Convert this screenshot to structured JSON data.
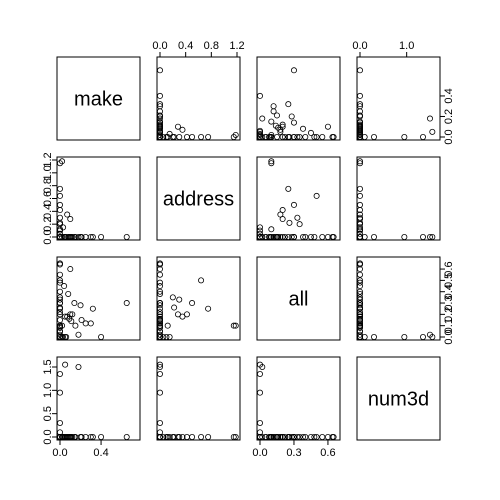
{
  "chart_data": {
    "type": "scatter",
    "title": "",
    "grid": false,
    "variables": [
      {
        "name": "make",
        "range": [
          0,
          0.75
        ],
        "ticks": [
          0.0,
          0.4
        ],
        "tick_labels": [
          "0.0",
          "0.4"
        ]
      },
      {
        "name": "address",
        "range": [
          0,
          1.2
        ],
        "ticks": [
          0.0,
          0.2,
          0.4,
          0.6,
          0.8,
          1.0,
          1.2
        ],
        "tick_labels": [
          "0.0",
          "0.4",
          "0.8",
          "1.2"
        ],
        "labeled_ticks": [
          0.0,
          0.4,
          0.8,
          1.2
        ],
        "side_ticks": [
          "0.0",
          "0.2",
          "0.4",
          "0.6",
          "0.8",
          "1.0",
          "1.2"
        ]
      },
      {
        "name": "all",
        "range": [
          0,
          0.68
        ],
        "ticks": [
          0.0,
          0.3,
          0.6
        ],
        "tick_labels": [
          "0.0",
          "0.3",
          "0.6"
        ],
        "side_ticks": [
          "0.0",
          "0.1",
          "0.2",
          "0.3",
          "0.4",
          "0.5",
          "0.6"
        ]
      },
      {
        "name": "num3d",
        "range": [
          0,
          1.65
        ],
        "ticks": [
          0.0,
          1.0
        ],
        "tick_labels": [
          "0.0",
          "1.0"
        ],
        "side_ticks": [
          "0.0",
          "0.5",
          "1.0",
          "1.5"
        ]
      }
    ],
    "axes": {
      "top": {
        "columns": [
          1,
          3
        ],
        "labels": {
          "1": [
            "0.0",
            "0.4",
            "0.8",
            "1.2"
          ],
          "3": [
            "0.0",
            "1.0"
          ]
        }
      },
      "bottom": {
        "columns": [
          0,
          2
        ],
        "labels": {
          "0": [
            "0.0",
            "0.4"
          ],
          "2": [
            "0.0",
            "0.3",
            "0.6"
          ]
        }
      },
      "left": {
        "rows": [
          1,
          3
        ],
        "labels": {
          "1": [
            "0.0",
            "0.2",
            "0.4",
            "0.6",
            "0.8",
            "1.0",
            "1.2"
          ],
          "3": [
            "0.0",
            "0.5",
            "1.0",
            "1.5"
          ]
        }
      },
      "right": {
        "rows": [
          0,
          2
        ],
        "labels": {
          "0": [
            "0.0",
            "0.2",
            "0.4"
          ],
          "2": [
            "0.0",
            "0.1",
            "0.2",
            "0.3",
            "0.4",
            "0.5",
            "0.6"
          ]
        }
      }
    },
    "observations": {
      "make": [
        0.0,
        0.0,
        0.0,
        0.02,
        0.05,
        0.1,
        0.0,
        0.0,
        0.0,
        0.21,
        0.0,
        0.0,
        0.32,
        0.0,
        0.1,
        0.07,
        0.0,
        0.0,
        0.15,
        0.03,
        0.0,
        0.0,
        0.0,
        0.0,
        0.3,
        0.04,
        0.0,
        0.12,
        0.0,
        0.0,
        0.0,
        0.0,
        0.65,
        0.2,
        0.0,
        0.0,
        0.08,
        0.0,
        0.0,
        0.0,
        0.18,
        0.0,
        0.05,
        0.0,
        0.0,
        0.25,
        0.0,
        0.0,
        0.0,
        0.14,
        0.0,
        0.0,
        0.02,
        0.0,
        0.09,
        0.0,
        0.0,
        0.0,
        0.4,
        0.0,
        0.0,
        0.0,
        0.0,
        0.06,
        0.0,
        0.0,
        0.0,
        0.11,
        0.0,
        0.0
      ],
      "address": [
        0.0,
        0.64,
        0.0,
        1.18,
        0.0,
        0.28,
        0.0,
        0.0,
        0.2,
        0.0,
        0.0,
        0.0,
        0.0,
        0.1,
        0.0,
        0.35,
        0.0,
        0.0,
        0.0,
        0.15,
        0.0,
        0.0,
        0.5,
        0.0,
        0.0,
        0.0,
        0.0,
        0.0,
        0.0,
        0.3,
        0.0,
        0.0,
        0.0,
        0.0,
        0.0,
        0.12,
        0.0,
        0.0,
        0.0,
        0.75,
        0.0,
        0.0,
        0.0,
        0.0,
        0.05,
        0.0,
        0.0,
        0.0,
        0.0,
        0.0,
        0.0,
        0.0,
        0.0,
        0.0,
        0.0,
        0.0,
        0.0,
        0.22,
        0.0,
        0.0,
        0.42,
        0.0,
        0.0,
        0.0,
        0.0,
        1.15,
        0.0,
        0.0,
        0.0,
        0.0
      ],
      "all": [
        0.64,
        0.5,
        0.3,
        0.1,
        0.0,
        0.2,
        0.05,
        0.0,
        0.35,
        0.15,
        0.0,
        0.4,
        0.25,
        0.0,
        0.6,
        0.18,
        0.0,
        0.22,
        0.1,
        0.0,
        0.55,
        0.0,
        0.3,
        0.08,
        0.12,
        0.45,
        0.0,
        0.2,
        0.0,
        0.33,
        0.0,
        0.15,
        0.3,
        0.28,
        0.0,
        0.1,
        0.38,
        0.0,
        0.05,
        0.25,
        0.02,
        0.0,
        0.18,
        0.65,
        0.0,
        0.12,
        0.0,
        0.09,
        0.0,
        0.3,
        0.0,
        0.48,
        0.0,
        0.02,
        0.16,
        0.0,
        0.0,
        0.26,
        0.0,
        0.0,
        0.2,
        0.0,
        0.0,
        0.0,
        0.0,
        0.1,
        0.0,
        0.14,
        0.0,
        0.0
      ],
      "num3d": [
        0.0,
        0.0,
        0.0,
        0.0,
        1.55,
        0.0,
        0.0,
        0.0,
        0.0,
        0.0,
        1.35,
        0.0,
        0.0,
        0.0,
        0.0,
        0.0,
        0.3,
        0.0,
        0.0,
        0.0,
        0.0,
        0.0,
        0.0,
        0.0,
        0.0,
        0.0,
        0.95,
        0.0,
        0.0,
        0.0,
        0.0,
        0.0,
        0.0,
        0.0,
        0.1,
        0.0,
        0.0,
        0.0,
        0.0,
        0.0,
        1.5,
        0.0,
        0.0,
        0.0,
        0.0,
        0.0,
        0.0,
        0.0,
        0.0,
        0.0,
        0.0,
        0.0,
        0.0,
        0.0,
        0.0,
        0.0,
        0.0,
        0.0,
        0.0,
        0.0,
        0.0,
        0.0,
        0.0,
        0.0,
        0.0,
        0.0,
        0.0,
        0.0,
        0.0,
        0.0
      ]
    }
  }
}
